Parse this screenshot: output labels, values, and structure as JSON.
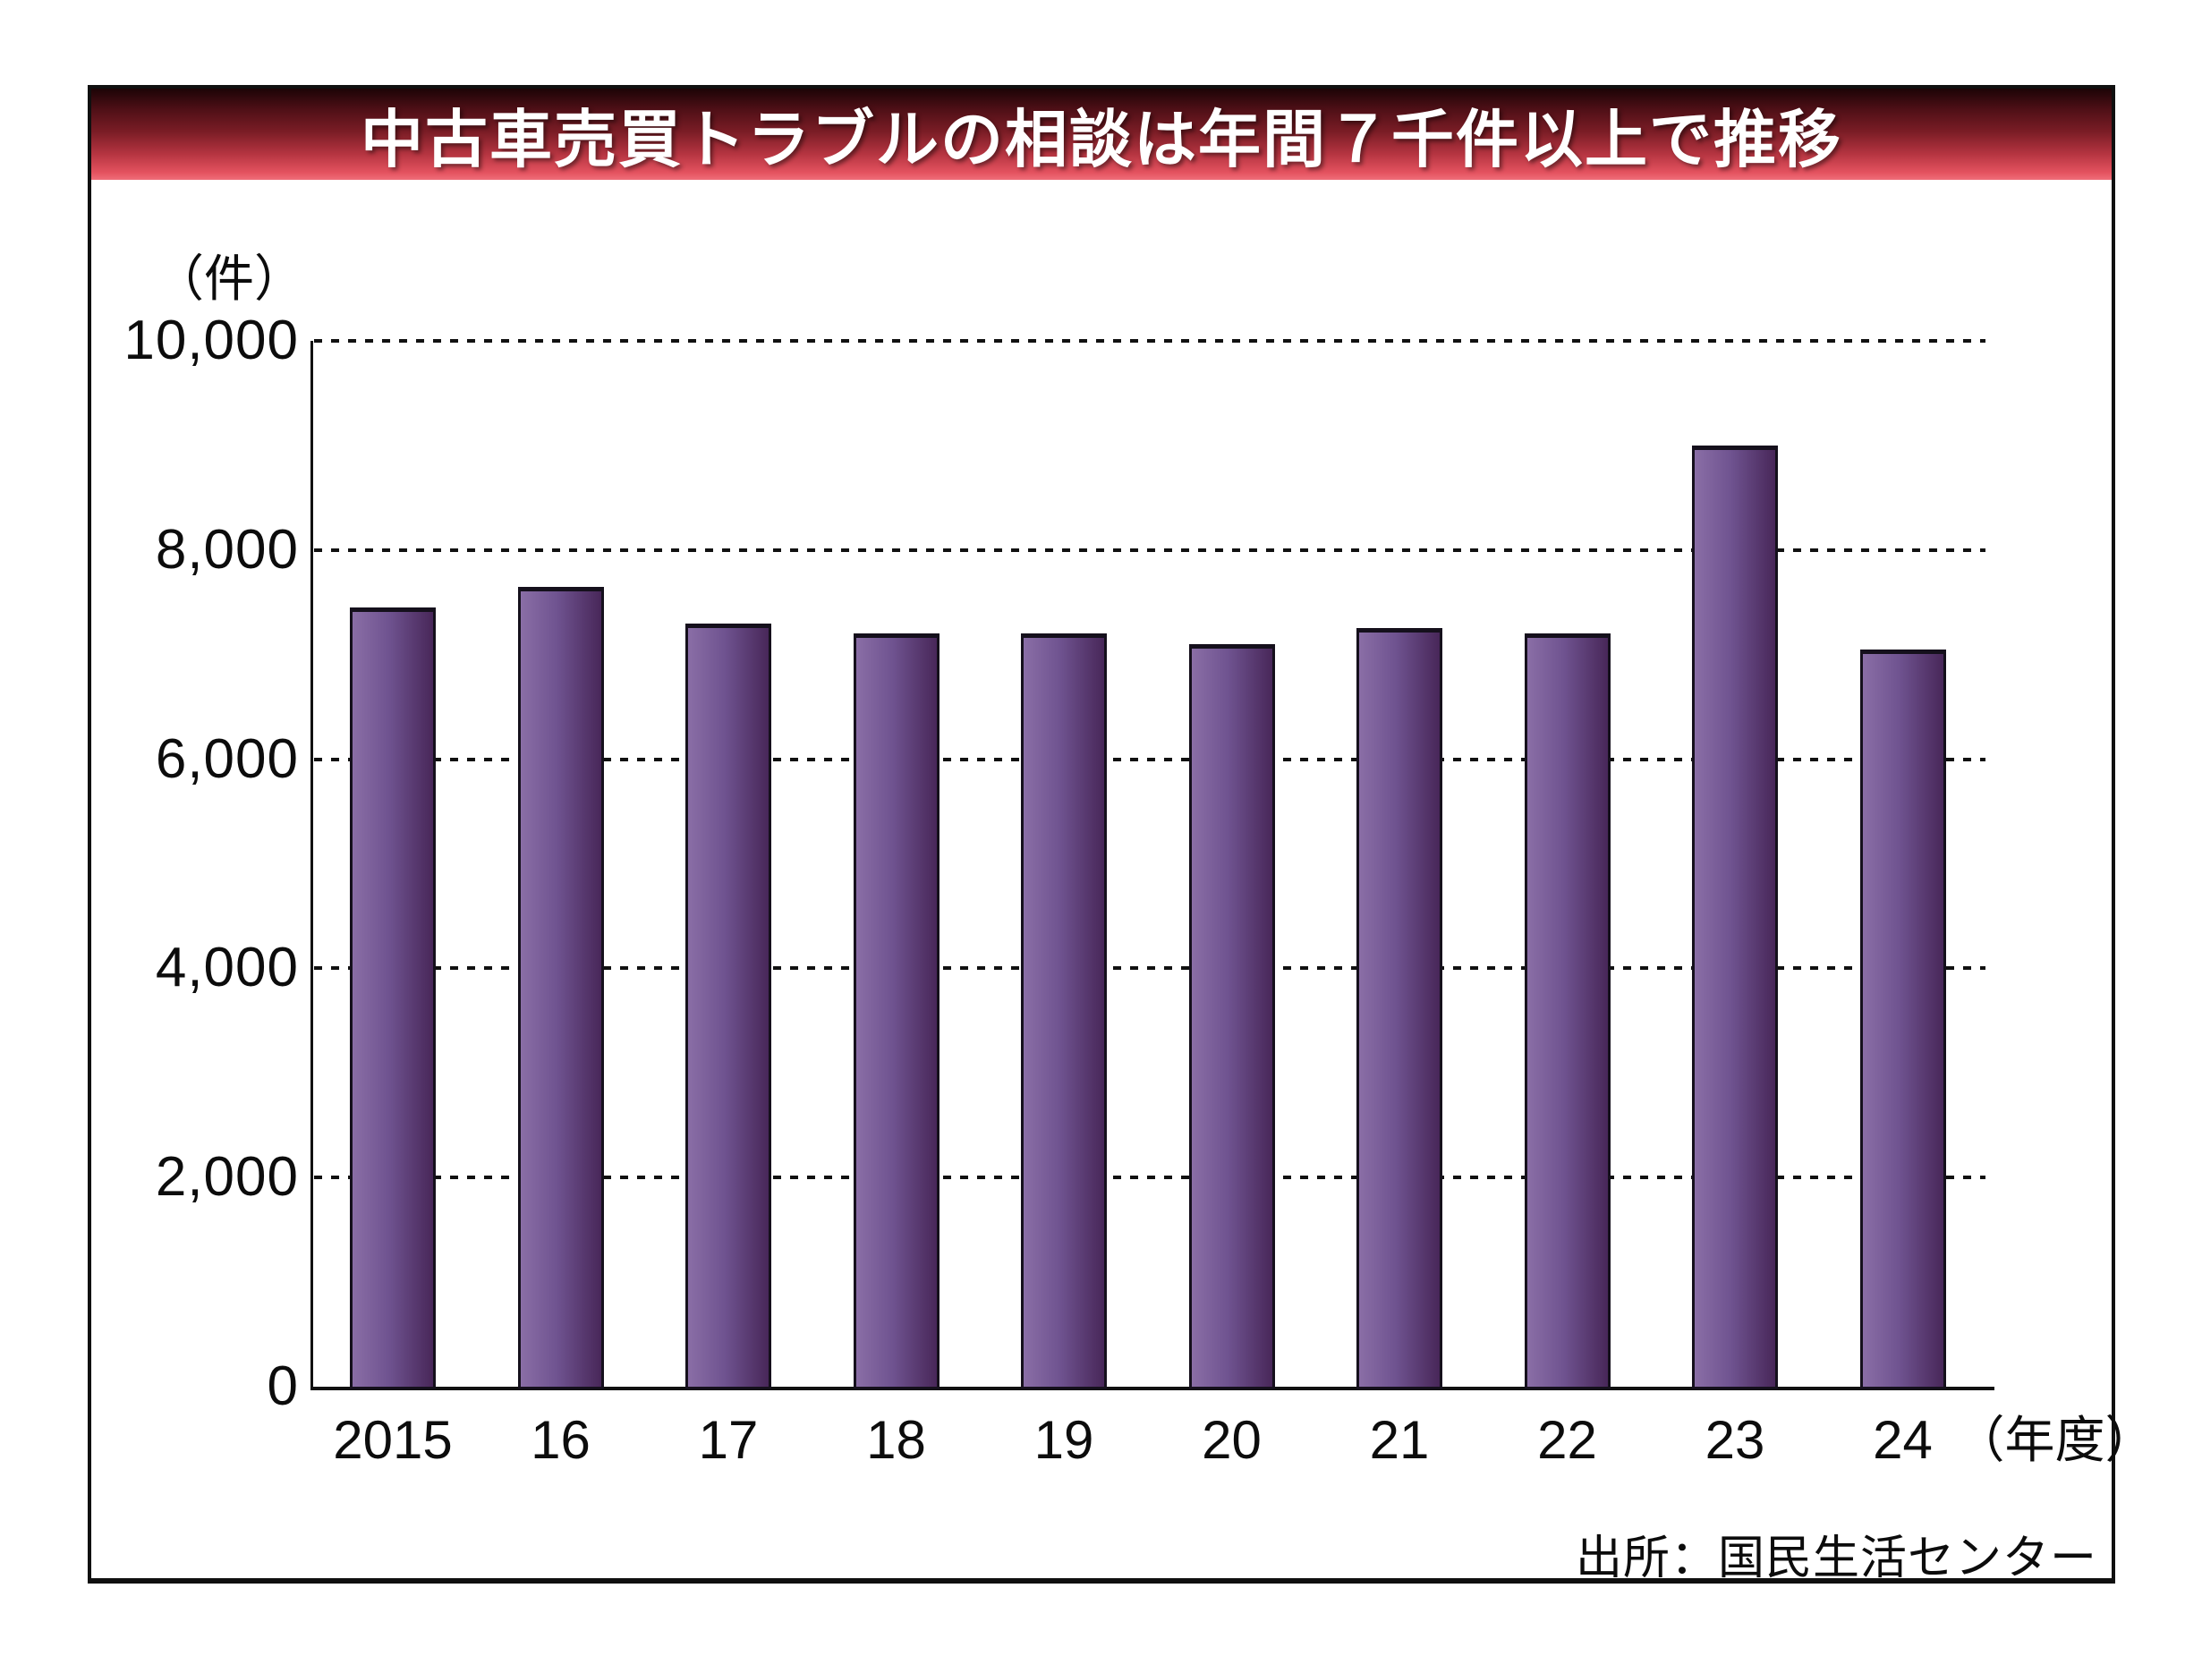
{
  "figure": {
    "banner": {
      "title": "中古車売買トラブルの相談は年間７千件以上で推移"
    },
    "source": "出所：国民生活センター"
  },
  "chart_data": {
    "type": "bar",
    "title": "中古車売買トラブルの相談は年間７千件以上で推移",
    "unit_label": "（件）",
    "categories": [
      "2015",
      "16",
      "17",
      "18",
      "19",
      "20",
      "21",
      "22",
      "23",
      "24"
    ],
    "x_axis_suffix": "（年度）",
    "values": [
      7450,
      7650,
      7300,
      7200,
      7200,
      7100,
      7250,
      7200,
      9000,
      7050
    ],
    "ylim": [
      0,
      10000
    ],
    "y_ticks": [
      {
        "value": 0,
        "label": "0"
      },
      {
        "value": 2000,
        "label": "2,000"
      },
      {
        "value": 4000,
        "label": "4,000"
      },
      {
        "value": 6000,
        "label": "6,000"
      },
      {
        "value": 8000,
        "label": "8,000"
      },
      {
        "value": 10000,
        "label": "10,000"
      }
    ],
    "grid": {
      "horizontal": "dotted",
      "vertical": "none"
    },
    "legend": "none",
    "colors": {
      "bar_gradient_left": "#8a6ea6",
      "bar_gradient_right": "#482759",
      "bar_border": "#15101c",
      "banner_gradient_top": "#1c0406",
      "banner_gradient_bottom": "#ef6e79",
      "title_text": "#ffffff",
      "axis": "#111111"
    }
  }
}
